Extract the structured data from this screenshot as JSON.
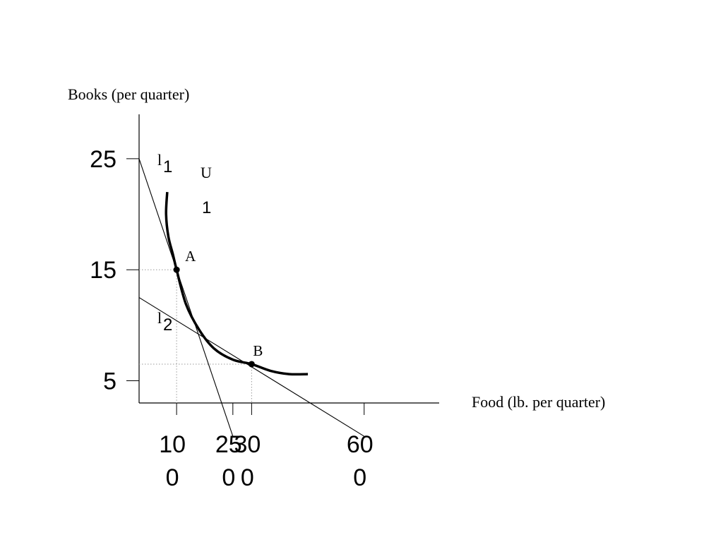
{
  "chart_data": {
    "type": "line",
    "title": "",
    "xlabel": "Food (lb. per quarter)",
    "ylabel": "Books (per quarter)",
    "xlim": [
      0,
      80
    ],
    "ylim": [
      3,
      29
    ],
    "grid": false,
    "x_ticks": [
      {
        "value": 10,
        "line1": "10",
        "line2": "0"
      },
      {
        "value": 25,
        "line1": "25",
        "line2": "0"
      },
      {
        "value": 30,
        "line1": "30",
        "line2": "0"
      },
      {
        "value": 60,
        "line1": "60",
        "line2": "0"
      }
    ],
    "y_ticks": [
      {
        "value": 25,
        "label": "25"
      },
      {
        "value": 15,
        "label": "15"
      },
      {
        "value": 5,
        "label": "5"
      }
    ],
    "series": [
      {
        "name": "l1",
        "label_main": "l",
        "label_sub": "1",
        "kind": "budget-line",
        "points": [
          [
            0,
            25
          ],
          [
            25,
            0
          ]
        ]
      },
      {
        "name": "l2",
        "label_main": "l",
        "label_sub": "2",
        "kind": "budget-line",
        "points": [
          [
            0,
            12.5
          ],
          [
            60,
            0
          ]
        ]
      },
      {
        "name": "U1",
        "label_main": "U",
        "label_sub": "1",
        "kind": "indifference-curve",
        "points": [
          [
            7.5,
            22
          ],
          [
            7.2,
            20
          ],
          [
            7.8,
            18
          ],
          [
            9.0,
            16.4
          ],
          [
            10,
            15
          ],
          [
            12.5,
            11.9
          ],
          [
            16,
            9.6
          ],
          [
            20,
            7.9
          ],
          [
            25,
            6.9
          ],
          [
            30,
            6.5
          ],
          [
            35,
            5.9
          ],
          [
            40,
            5.6
          ],
          [
            45,
            5.6
          ]
        ]
      }
    ],
    "points": [
      {
        "label": "A",
        "x": 10,
        "y": 15
      },
      {
        "label": "B",
        "x": 30,
        "y": 6.5
      }
    ],
    "reference_lines": [
      {
        "x": 10,
        "y": 15
      },
      {
        "x": 30,
        "y": 6.5
      }
    ]
  }
}
